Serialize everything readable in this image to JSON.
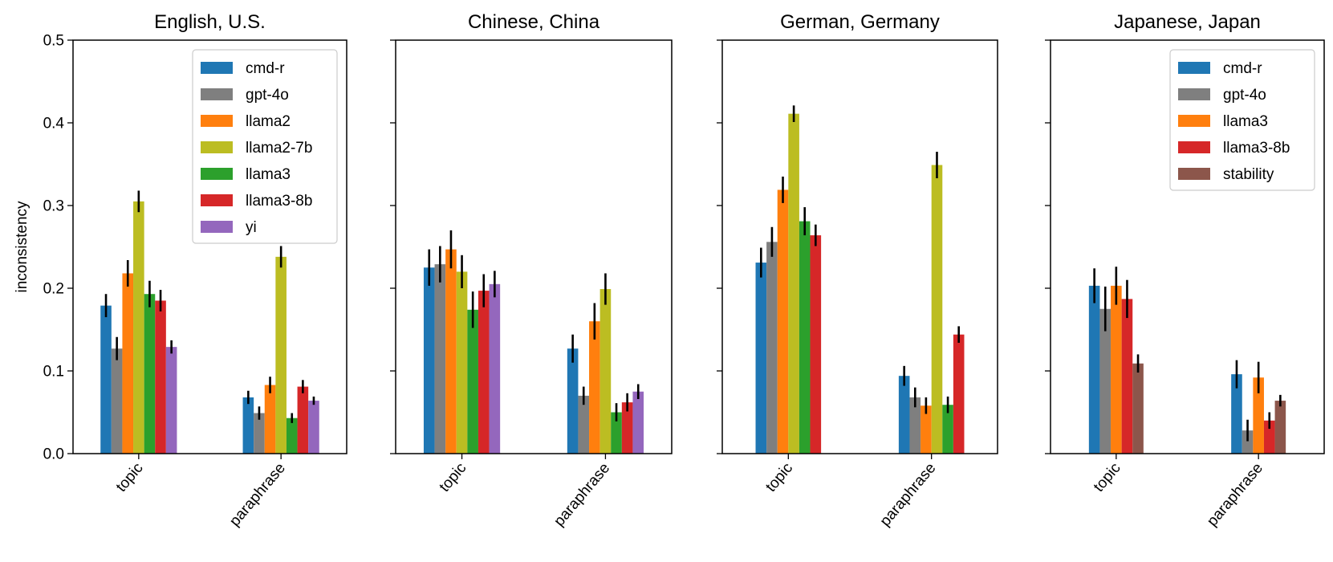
{
  "chart_data": [
    {
      "type": "bar",
      "title": "English, U.S.",
      "categories": [
        "topic",
        "paraphrase"
      ],
      "ylabel": "inconsistency",
      "ylim": [
        0,
        0.5
      ],
      "yticks": [
        "0.0",
        "0.1",
        "0.2",
        "0.3",
        "0.4",
        "0.5"
      ],
      "legend": "top-right",
      "series": [
        {
          "name": "cmd-r",
          "color": "#1f77b4",
          "values": [
            0.179,
            0.068
          ],
          "errors": [
            0.014,
            0.008
          ]
        },
        {
          "name": "gpt-4o",
          "color": "#7f7f7f",
          "values": [
            0.127,
            0.049
          ],
          "errors": [
            0.014,
            0.008
          ]
        },
        {
          "name": "llama2",
          "color": "#ff7f0e",
          "values": [
            0.218,
            0.083
          ],
          "errors": [
            0.016,
            0.01
          ]
        },
        {
          "name": "llama2-7b",
          "color": "#bcbd22",
          "values": [
            0.305,
            0.238
          ],
          "errors": [
            0.013,
            0.013
          ]
        },
        {
          "name": "llama3",
          "color": "#2ca02c",
          "values": [
            0.193,
            0.043
          ],
          "errors": [
            0.016,
            0.006
          ]
        },
        {
          "name": "llama3-8b",
          "color": "#d62728",
          "values": [
            0.185,
            0.081
          ],
          "errors": [
            0.013,
            0.008
          ]
        },
        {
          "name": "yi",
          "color": "#9467bd",
          "values": [
            0.129,
            0.064
          ],
          "errors": [
            0.008,
            0.005
          ]
        }
      ]
    },
    {
      "type": "bar",
      "title": "Chinese, China",
      "categories": [
        "topic",
        "paraphrase"
      ],
      "ylim": [
        0,
        0.5
      ],
      "series": [
        {
          "name": "cmd-r",
          "color": "#1f77b4",
          "values": [
            0.225,
            0.127
          ],
          "errors": [
            0.022,
            0.017
          ]
        },
        {
          "name": "gpt-4o",
          "color": "#7f7f7f",
          "values": [
            0.229,
            0.07
          ],
          "errors": [
            0.022,
            0.011
          ]
        },
        {
          "name": "llama2",
          "color": "#ff7f0e",
          "values": [
            0.247,
            0.16
          ],
          "errors": [
            0.023,
            0.022
          ]
        },
        {
          "name": "llama2-7b",
          "color": "#bcbd22",
          "values": [
            0.22,
            0.199
          ],
          "errors": [
            0.02,
            0.019
          ]
        },
        {
          "name": "llama3",
          "color": "#2ca02c",
          "values": [
            0.174,
            0.05
          ],
          "errors": [
            0.022,
            0.011
          ]
        },
        {
          "name": "llama3-8b",
          "color": "#d62728",
          "values": [
            0.197,
            0.062
          ],
          "errors": [
            0.02,
            0.011
          ]
        },
        {
          "name": "yi",
          "color": "#9467bd",
          "values": [
            0.205,
            0.075
          ],
          "errors": [
            0.016,
            0.009
          ]
        }
      ]
    },
    {
      "type": "bar",
      "title": "German, Germany",
      "categories": [
        "topic",
        "paraphrase"
      ],
      "ylim": [
        0,
        0.5
      ],
      "series": [
        {
          "name": "cmd-r",
          "color": "#1f77b4",
          "values": [
            0.231,
            0.094
          ],
          "errors": [
            0.018,
            0.012
          ]
        },
        {
          "name": "gpt-4o",
          "color": "#7f7f7f",
          "values": [
            0.256,
            0.068
          ],
          "errors": [
            0.018,
            0.012
          ]
        },
        {
          "name": "llama2",
          "color": "#ff7f0e",
          "values": [
            0.319,
            0.058
          ],
          "errors": [
            0.016,
            0.01
          ]
        },
        {
          "name": "llama2-7b",
          "color": "#bcbd22",
          "values": [
            0.411,
            0.349
          ],
          "errors": [
            0.01,
            0.016
          ]
        },
        {
          "name": "llama3",
          "color": "#2ca02c",
          "values": [
            0.281,
            0.059
          ],
          "errors": [
            0.017,
            0.01
          ]
        },
        {
          "name": "llama3-8b",
          "color": "#d62728",
          "values": [
            0.264,
            0.144
          ],
          "errors": [
            0.013,
            0.01
          ]
        }
      ]
    },
    {
      "type": "bar",
      "title": "Japanese, Japan",
      "categories": [
        "topic",
        "paraphrase"
      ],
      "ylim": [
        0,
        0.5
      ],
      "legend": "top-right",
      "series": [
        {
          "name": "cmd-r",
          "color": "#1f77b4",
          "values": [
            0.203,
            0.096
          ],
          "errors": [
            0.021,
            0.017
          ]
        },
        {
          "name": "gpt-4o",
          "color": "#7f7f7f",
          "values": [
            0.175,
            0.028
          ],
          "errors": [
            0.027,
            0.013
          ]
        },
        {
          "name": "llama3",
          "color": "#ff7f0e",
          "values": [
            0.203,
            0.092
          ],
          "errors": [
            0.023,
            0.019
          ]
        },
        {
          "name": "llama3-8b",
          "color": "#d62728",
          "values": [
            0.187,
            0.04
          ],
          "errors": [
            0.023,
            0.01
          ]
        },
        {
          "name": "stability",
          "color": "#8c564b",
          "values": [
            0.109,
            0.064
          ],
          "errors": [
            0.011,
            0.007
          ]
        }
      ]
    }
  ]
}
